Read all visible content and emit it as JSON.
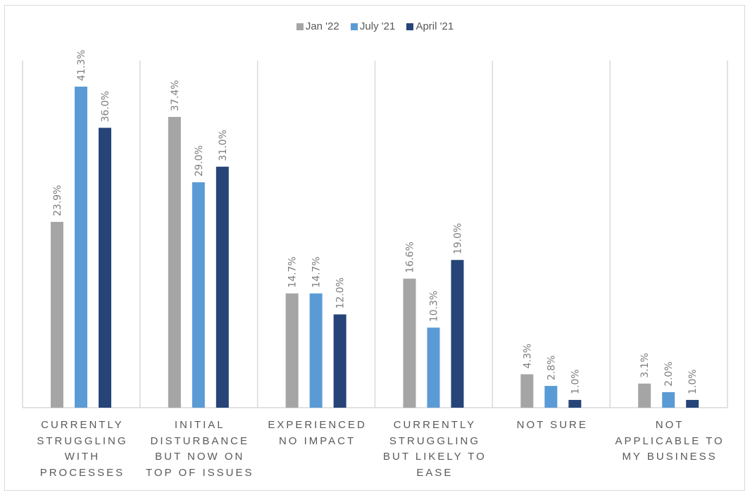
{
  "chart_data": {
    "type": "bar",
    "title": "",
    "xlabel": "",
    "ylabel": "",
    "ylim": [
      0,
      43
    ],
    "grid": false,
    "legend_position": "top",
    "categories": [
      "CURRENTLY STRUGGLING WITH PROCESSES",
      "INITIAL DISTURBANCE BUT NOW ON TOP OF ISSUES",
      "EXPERIENCED NO IMPACT",
      "CURRENTLY STRUGGLING BUT LIKELY TO EASE",
      "NOT SURE",
      "NOT APPLICABLE TO MY BUSINESS"
    ],
    "category_label_lines": [
      "CURRENTLY\nSTRUGGLING\nWITH\nPROCESSES",
      "INITIAL\nDISTURBANCE\nBUT NOW ON\nTOP OF ISSUES",
      "EXPERIENCED\nNO IMPACT",
      "CURRENTLY\nSTRUGGLING\nBUT LIKELY TO\nEASE",
      "NOT SURE",
      "NOT\nAPPLICABLE TO\nMY BUSINESS"
    ],
    "series": [
      {
        "name": "Jan '22",
        "color": "#a5a5a5",
        "values": [
          23.9,
          37.4,
          14.7,
          16.6,
          4.3,
          3.1
        ]
      },
      {
        "name": "July '21",
        "color": "#5b9bd5",
        "values": [
          41.3,
          29.0,
          14.7,
          10.3,
          2.8,
          2.0
        ]
      },
      {
        "name": "April '21",
        "color": "#264478",
        "values": [
          36.0,
          31.0,
          12.0,
          19.0,
          1.0,
          1.0
        ]
      }
    ],
    "value_format": "percent_1dp",
    "data_labels": [
      [
        "23.9%",
        "37.4%",
        "14.7%",
        "16.6%",
        "4.3%",
        "3.1%"
      ],
      [
        "41.3%",
        "29.0%",
        "14.7%",
        "10.3%",
        "2.8%",
        "2.0%"
      ],
      [
        "36.0%",
        "31.0%",
        "12.0%",
        "19.0%",
        "1.0%",
        "1.0%"
      ]
    ],
    "separator_color": "#d9d9d9"
  }
}
